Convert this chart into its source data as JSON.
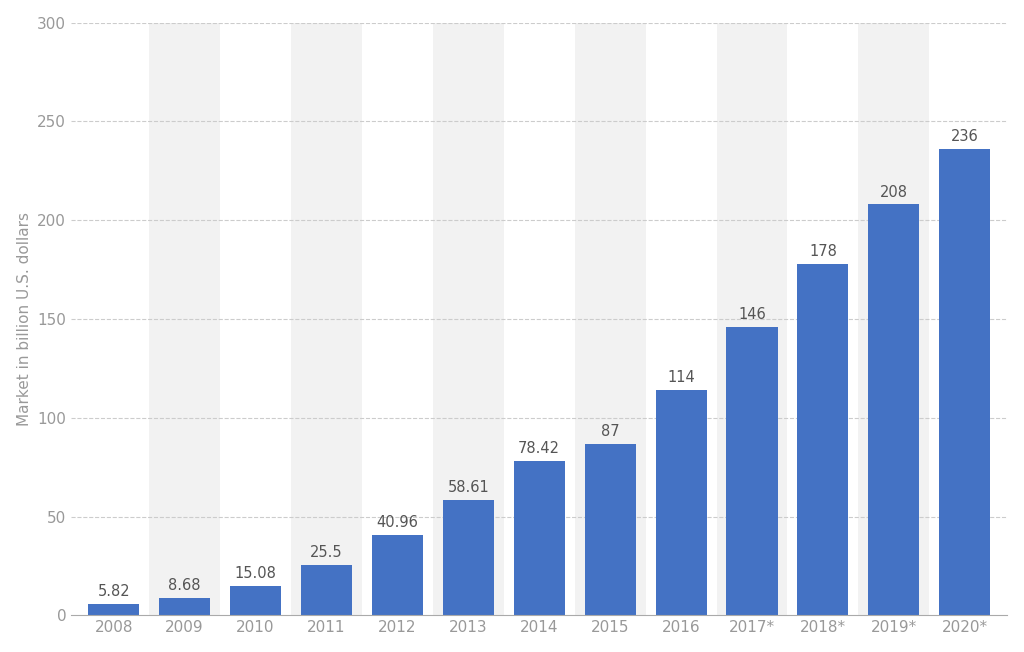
{
  "categories": [
    "2008",
    "2009",
    "2010",
    "2011",
    "2012",
    "2013",
    "2014",
    "2015",
    "2016",
    "2017*",
    "2018*",
    "2019*",
    "2020*"
  ],
  "values": [
    5.82,
    8.68,
    15.08,
    25.5,
    40.96,
    58.61,
    78.42,
    87,
    114,
    146,
    178,
    208,
    236
  ],
  "labels": [
    "5.82",
    "8.68",
    "15.08",
    "25.5",
    "40.96",
    "58.61",
    "78.42",
    "87",
    "114",
    "146",
    "178",
    "208",
    "236"
  ],
  "bar_color": "#4472c4",
  "background_color": "#ffffff",
  "plot_background_color": "#ffffff",
  "stripe_color": "#f2f2f2",
  "ylabel": "Market in billion U.S. dollars",
  "ylim": [
    0,
    300
  ],
  "yticks": [
    0,
    50,
    100,
    150,
    200,
    250,
    300
  ],
  "grid_color": "#cccccc",
  "tick_color": "#999999",
  "label_fontsize": 11,
  "ylabel_fontsize": 11,
  "bar_label_fontsize": 10.5,
  "bar_label_color": "#555555"
}
